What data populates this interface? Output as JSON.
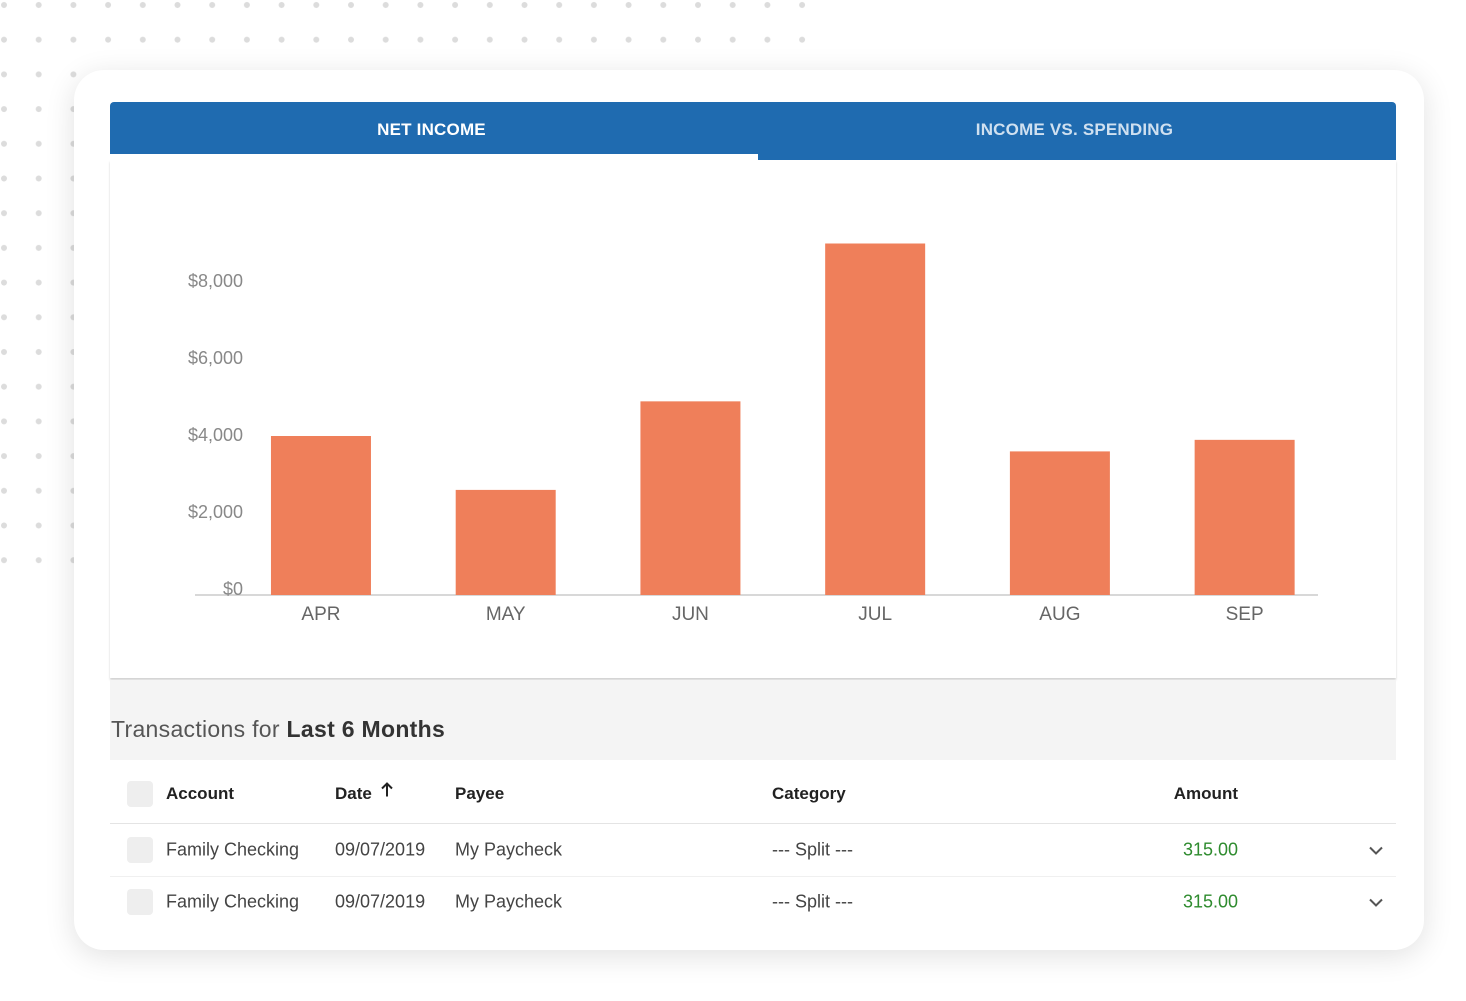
{
  "tabs": [
    "NET INCOME",
    "INCOME VS. SPENDING"
  ],
  "chart_data": {
    "type": "bar",
    "categories": [
      "APR",
      "MAY",
      "JUN",
      "JUL",
      "AUG",
      "SEP"
    ],
    "values": [
      4000,
      2600,
      4900,
      9000,
      3600,
      3900
    ],
    "color": "#ef7f5a",
    "ylim": [
      0,
      10000
    ],
    "yticks": [
      {
        "value": 0,
        "label": "$0"
      },
      {
        "value": 2000,
        "label": "$2,000"
      },
      {
        "value": 4000,
        "label": "$4,000"
      },
      {
        "value": 6000,
        "label": "$6,000"
      },
      {
        "value": 8000,
        "label": "$8,000"
      }
    ],
    "grid": false
  },
  "transactions": {
    "heading_prefix": "Transactions for",
    "heading_period": "Last 6 Months",
    "columns": [
      "Account",
      "Date",
      "Payee",
      "Category",
      "Amount"
    ],
    "rows": [
      [
        "Family Checking",
        "09/07/2019",
        "My Paycheck",
        "--- Split ---",
        "315.00"
      ],
      [
        "Family Checking",
        "09/07/2019",
        "My Paycheck",
        "--- Split ---",
        "315.00"
      ]
    ]
  }
}
